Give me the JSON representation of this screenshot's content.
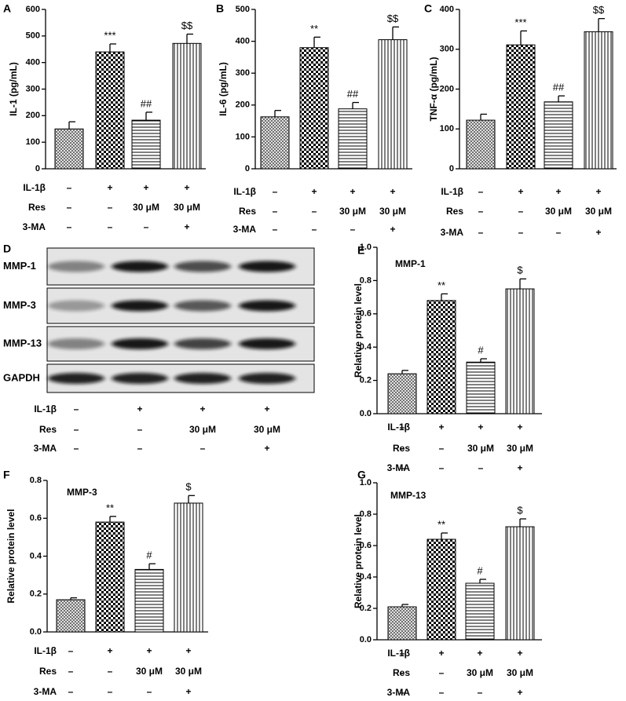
{
  "chart_data": [
    {
      "type": "bar",
      "panel": "A",
      "ylabel": "IL-1 (pg/mL)",
      "ylim": [
        0,
        600
      ],
      "yticks": [
        0,
        100,
        200,
        300,
        400,
        500,
        600
      ],
      "values": [
        150,
        440,
        183,
        472
      ],
      "errors": [
        27,
        30,
        30,
        35
      ],
      "annotations": [
        null,
        "***",
        "##",
        "$$"
      ],
      "conditions": [
        {
          "name": "IL-1β",
          "values": [
            "–",
            "+",
            "+",
            "+"
          ]
        },
        {
          "name": "Res",
          "values": [
            "–",
            "–",
            "30 μM",
            "30 μM"
          ]
        },
        {
          "name": "3-MA",
          "values": [
            "–",
            "–",
            "–",
            "+"
          ]
        }
      ]
    },
    {
      "type": "bar",
      "panel": "B",
      "ylabel": "IL-6 (pg/mL)",
      "ylim": [
        0,
        500
      ],
      "yticks": [
        0,
        100,
        200,
        300,
        400,
        500
      ],
      "values": [
        163,
        380,
        188,
        405
      ],
      "errors": [
        20,
        33,
        20,
        40
      ],
      "annotations": [
        null,
        "**",
        "##",
        "$$"
      ],
      "conditions": [
        {
          "name": "IL-1β",
          "values": [
            "–",
            "+",
            "+",
            "+"
          ]
        },
        {
          "name": "Res",
          "values": [
            "–",
            "–",
            "30 μM",
            "30 μM"
          ]
        },
        {
          "name": "3-MA",
          "values": [
            "–",
            "–",
            "–",
            "+"
          ]
        }
      ]
    },
    {
      "type": "bar",
      "panel": "C",
      "ylabel": "TNF-α (pg/mL)",
      "ylim": [
        0,
        400
      ],
      "yticks": [
        0,
        100,
        200,
        300,
        400
      ],
      "values": [
        122,
        311,
        168,
        344
      ],
      "errors": [
        15,
        35,
        15,
        33
      ],
      "annotations": [
        null,
        "***",
        "##",
        "$$"
      ],
      "conditions": [
        {
          "name": "IL-1β",
          "values": [
            "–",
            "+",
            "+",
            "+"
          ]
        },
        {
          "name": "Res",
          "values": [
            "–",
            "–",
            "30 μM",
            "30 μM"
          ]
        },
        {
          "name": "3-MA",
          "values": [
            "–",
            "–",
            "–",
            "+"
          ]
        }
      ]
    },
    {
      "type": "bar",
      "panel": "E",
      "title": "MMP-1",
      "ylabel": "Relative protein level",
      "ylim": [
        0,
        1.0
      ],
      "yticks": [
        {
          "value": 0,
          "label": "0.0"
        },
        0.2,
        0.4,
        0.6,
        0.8,
        {
          "value": 1.0,
          "label": "1.0"
        }
      ],
      "values": [
        0.24,
        0.68,
        0.31,
        0.75
      ],
      "errors": [
        0.02,
        0.04,
        0.02,
        0.06
      ],
      "annotations": [
        null,
        "**",
        "#",
        "$"
      ],
      "conditions": [
        {
          "name": "IL-1β",
          "values": [
            "–",
            "+",
            "+",
            "+"
          ]
        },
        {
          "name": "Res",
          "values": [
            "–",
            "–",
            "30 μM",
            "30 μM"
          ]
        },
        {
          "name": "3-MA",
          "values": [
            "–",
            "–",
            "–",
            "+"
          ]
        }
      ]
    },
    {
      "type": "bar",
      "panel": "F",
      "title": "MMP-3",
      "ylabel": "Relative protein level",
      "ylim": [
        0,
        0.8
      ],
      "yticks": [
        {
          "value": 0,
          "label": "0.0"
        },
        0.2,
        0.4,
        0.6,
        0.8
      ],
      "values": [
        0.17,
        0.58,
        0.33,
        0.68
      ],
      "errors": [
        0.01,
        0.03,
        0.03,
        0.04
      ],
      "annotations": [
        null,
        "**",
        "#",
        "$"
      ],
      "conditions": [
        {
          "name": "IL-1β",
          "values": [
            "–",
            "+",
            "+",
            "+"
          ]
        },
        {
          "name": "Res",
          "values": [
            "–",
            "–",
            "30 μM",
            "30 μM"
          ]
        },
        {
          "name": "3-MA",
          "values": [
            "–",
            "–",
            "–",
            "+"
          ]
        }
      ]
    },
    {
      "type": "bar",
      "panel": "G",
      "title": "MMP-13",
      "ylabel": "Relative protein level",
      "ylim": [
        0,
        1.0
      ],
      "yticks": [
        {
          "value": 0,
          "label": "0.0"
        },
        0.2,
        0.4,
        0.6,
        0.8,
        {
          "value": 1.0,
          "label": "1.0"
        }
      ],
      "values": [
        0.21,
        0.64,
        0.36,
        0.72
      ],
      "errors": [
        0.015,
        0.04,
        0.025,
        0.05
      ],
      "annotations": [
        null,
        "**",
        "#",
        "$"
      ],
      "conditions": [
        {
          "name": "IL-1β",
          "values": [
            "–",
            "+",
            "+",
            "+"
          ]
        },
        {
          "name": "Res",
          "values": [
            "–",
            "–",
            "30 μM",
            "30 μM"
          ]
        },
        {
          "name": "3-MA",
          "values": [
            "–",
            "–",
            "–",
            "+"
          ]
        }
      ]
    }
  ],
  "blot": {
    "panel": "D",
    "rows": [
      "MMP-1",
      "MMP-3",
      "MMP-13",
      "GAPDH"
    ],
    "conditions": [
      {
        "name": "IL-1β",
        "values": [
          "–",
          "+",
          "+",
          "+"
        ]
      },
      {
        "name": "Res",
        "values": [
          "–",
          "–",
          "30 μM",
          "30 μM"
        ]
      },
      {
        "name": "3-MA",
        "values": [
          "–",
          "–",
          "–",
          "+"
        ]
      }
    ]
  }
}
